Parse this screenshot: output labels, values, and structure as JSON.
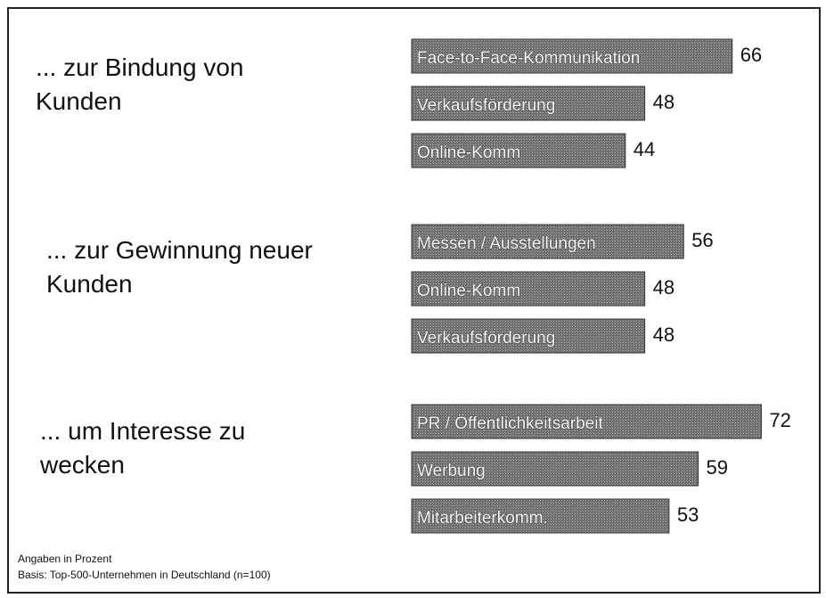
{
  "chart_data": [
    {
      "type": "bar",
      "title": "... zur Bindung von Kunden",
      "categories": [
        "Face-to-Face-Kommunikation",
        "Verkaufsförderung",
        "Online-Komm"
      ],
      "values": [
        66,
        48,
        44
      ],
      "color": "#6a6a6a"
    },
    {
      "type": "bar",
      "title": "... zur Gewinnung neuer Kunden",
      "categories": [
        "Messen / Ausstellungen",
        "Online-Komm",
        "Verkaufsförderung"
      ],
      "values": [
        56,
        48,
        48
      ],
      "color": "#6a6a6a"
    },
    {
      "type": "bar",
      "title": "... um Interesse zu wecken",
      "categories": [
        "PR / Öffentlichkeitsarbeit",
        "Werbung",
        "Mitarbeiterkomm."
      ],
      "values": [
        72,
        59,
        53
      ],
      "color": "#6a6a6a"
    }
  ],
  "notes": [
    "Angaben in Prozent",
    "Basis: Top-500-Unternehmen in Deutschland (n=100)"
  ]
}
